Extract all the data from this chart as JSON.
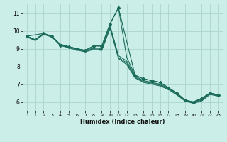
{
  "title": "",
  "xlabel": "Humidex (Indice chaleur)",
  "bg_color": "#cceee8",
  "grid_color": "#aad4ce",
  "line_color": "#1a6b5a",
  "xlim": [
    -0.5,
    23.5
  ],
  "ylim": [
    5.5,
    11.5
  ],
  "xticks": [
    0,
    1,
    2,
    3,
    4,
    5,
    6,
    7,
    8,
    9,
    10,
    11,
    12,
    13,
    14,
    15,
    16,
    17,
    18,
    19,
    20,
    21,
    22,
    23
  ],
  "yticks": [
    6,
    7,
    8,
    9,
    10,
    11
  ],
  "lines": [
    {
      "x": [
        0,
        1,
        2,
        3,
        4,
        5,
        6,
        7,
        8,
        9,
        10,
        11,
        12,
        13,
        14,
        15,
        16,
        17,
        18,
        19,
        20,
        21,
        22,
        23
      ],
      "y": [
        9.7,
        9.5,
        9.85,
        9.7,
        9.2,
        9.1,
        9.0,
        8.9,
        9.15,
        9.15,
        10.4,
        11.3,
        8.5,
        7.5,
        7.3,
        7.2,
        7.1,
        6.8,
        6.5,
        6.1,
        6.0,
        6.2,
        6.5,
        6.4
      ]
    },
    {
      "x": [
        0,
        1,
        2,
        3,
        4,
        5,
        6,
        7,
        8,
        9,
        10,
        11,
        12,
        13,
        14,
        15,
        16,
        17,
        18,
        19,
        20,
        21,
        22,
        23
      ],
      "y": [
        9.7,
        9.5,
        9.85,
        9.7,
        9.25,
        9.12,
        9.0,
        8.88,
        9.05,
        9.0,
        10.3,
        8.6,
        8.3,
        7.45,
        7.2,
        7.1,
        7.0,
        6.78,
        6.5,
        6.1,
        5.98,
        6.15,
        6.5,
        6.38
      ]
    },
    {
      "x": [
        0,
        1,
        2,
        3,
        4,
        5,
        6,
        7,
        8,
        9,
        10,
        11,
        12,
        13,
        14,
        15,
        16,
        17,
        18,
        19,
        20,
        21,
        22,
        23
      ],
      "y": [
        9.68,
        9.48,
        9.82,
        9.68,
        9.22,
        9.08,
        8.97,
        8.85,
        9.0,
        8.95,
        10.2,
        8.5,
        8.2,
        7.4,
        7.15,
        7.05,
        6.95,
        6.75,
        6.45,
        6.08,
        5.95,
        6.1,
        6.45,
        6.35
      ]
    },
    {
      "x": [
        0,
        1,
        2,
        3,
        4,
        5,
        6,
        7,
        8,
        9,
        10,
        11,
        12,
        13,
        14,
        15,
        16,
        17,
        18,
        19,
        20,
        21,
        22,
        23
      ],
      "y": [
        9.65,
        9.45,
        9.8,
        9.65,
        9.18,
        9.05,
        8.92,
        8.82,
        8.95,
        8.9,
        10.15,
        8.45,
        8.1,
        7.35,
        7.1,
        7.0,
        6.9,
        6.7,
        6.4,
        6.05,
        5.92,
        6.05,
        6.42,
        6.32
      ]
    }
  ],
  "marker_x": [
    0,
    2,
    3,
    4,
    5,
    6,
    7,
    8,
    9,
    10,
    11,
    13,
    14,
    15,
    16,
    17,
    18,
    19,
    20,
    21,
    22,
    23
  ],
  "marker_y": [
    9.7,
    9.85,
    9.7,
    9.2,
    9.1,
    9.0,
    8.9,
    9.15,
    9.15,
    10.4,
    11.3,
    7.5,
    7.3,
    7.2,
    7.1,
    6.8,
    6.5,
    6.1,
    6.0,
    6.2,
    6.5,
    6.4
  ]
}
